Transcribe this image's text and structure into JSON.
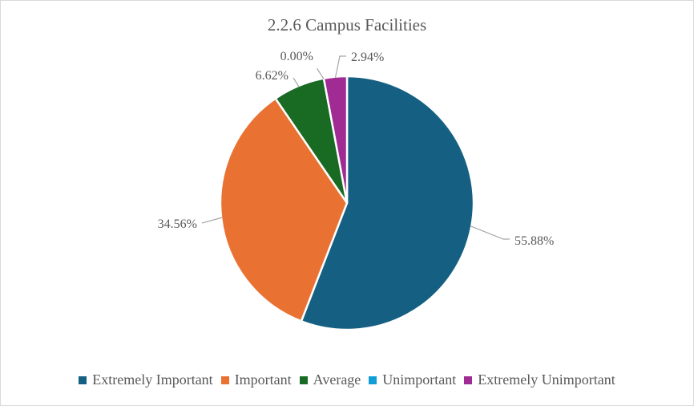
{
  "chart_data": {
    "type": "pie",
    "title": "2.2.6 Campus Facilities",
    "legend_position": "bottom",
    "slices": [
      {
        "name": "Extremely Important",
        "value": 55.88,
        "label": "55.88%",
        "color": "#156082"
      },
      {
        "name": "Important",
        "value": 34.56,
        "label": "34.56%",
        "color": "#E97132"
      },
      {
        "name": "Average",
        "value": 6.62,
        "label": "6.62%",
        "color": "#196B24"
      },
      {
        "name": "Unimportant",
        "value": 0.0,
        "label": "0.00%",
        "color": "#0F9ED5"
      },
      {
        "name": "Extremely Unimportant",
        "value": 2.94,
        "label": "2.94%",
        "color": "#A02B93"
      }
    ]
  }
}
